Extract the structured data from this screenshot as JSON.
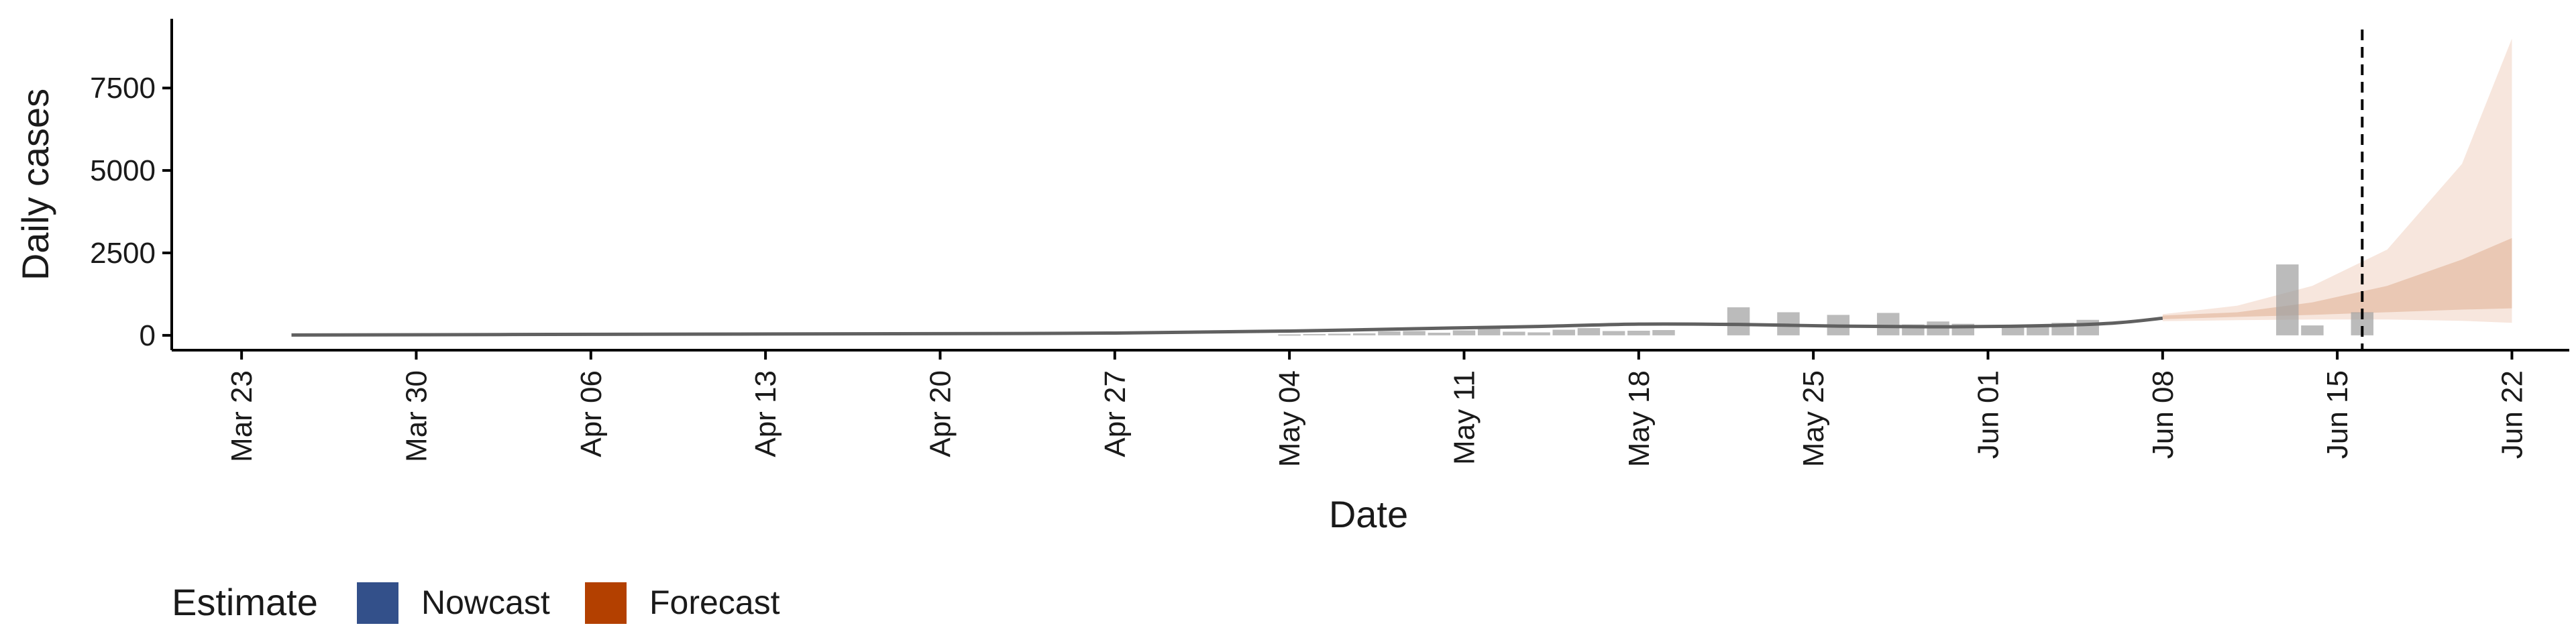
{
  "chart_data": {
    "type": "bar",
    "xlabel": "Date",
    "ylabel": "Daily cases",
    "x_tick_labels": [
      "Mar 23",
      "Mar 30",
      "Apr 06",
      "Apr 13",
      "Apr 20",
      "Apr 27",
      "May 04",
      "May 11",
      "May 18",
      "May 25",
      "Jun 01",
      "Jun 08",
      "Jun 15",
      "Jun 22"
    ],
    "x_tick_days": [
      0,
      7,
      14,
      21,
      28,
      35,
      42,
      49,
      56,
      63,
      70,
      77,
      84,
      91
    ],
    "y_ticks": [
      0,
      2500,
      5000,
      7500
    ],
    "xlim_days": [
      -2.8,
      93.3
    ],
    "ylim": [
      -450,
      9600
    ],
    "start_date": "2020-03-23",
    "grid": false,
    "reported_cases": [
      {
        "day": 42,
        "value": 30
      },
      {
        "day": 43,
        "value": 40
      },
      {
        "day": 44,
        "value": 50
      },
      {
        "day": 45,
        "value": 60
      },
      {
        "day": 46,
        "value": 120
      },
      {
        "day": 47,
        "value": 130
      },
      {
        "day": 48,
        "value": 80
      },
      {
        "day": 49,
        "value": 150
      },
      {
        "day": 50,
        "value": 200
      },
      {
        "day": 51,
        "value": 110
      },
      {
        "day": 52,
        "value": 90
      },
      {
        "day": 53,
        "value": 170
      },
      {
        "day": 54,
        "value": 220
      },
      {
        "day": 55,
        "value": 130
      },
      {
        "day": 56,
        "value": 140
      },
      {
        "day": 57,
        "value": 160
      },
      {
        "day": 60,
        "value": 850
      },
      {
        "day": 62,
        "value": 700
      },
      {
        "day": 64,
        "value": 620
      },
      {
        "day": 66,
        "value": 680
      },
      {
        "day": 67,
        "value": 330
      },
      {
        "day": 68,
        "value": 420
      },
      {
        "day": 69,
        "value": 350
      },
      {
        "day": 71,
        "value": 310
      },
      {
        "day": 72,
        "value": 330
      },
      {
        "day": 73,
        "value": 380
      },
      {
        "day": 74,
        "value": 470
      },
      {
        "day": 82,
        "value": 2150
      },
      {
        "day": 83,
        "value": 300
      },
      {
        "day": 85,
        "value": 700
      }
    ],
    "nowcast": {
      "name": "Nowcast",
      "color": "#33508a",
      "line_color": "#606060",
      "points": [
        [
          2,
          10
        ],
        [
          14,
          30
        ],
        [
          28,
          50
        ],
        [
          35,
          70
        ],
        [
          42,
          130
        ],
        [
          49,
          230
        ],
        [
          52,
          270
        ],
        [
          56,
          340
        ],
        [
          60,
          330
        ],
        [
          64,
          280
        ],
        [
          68,
          260
        ],
        [
          72,
          290
        ],
        [
          75,
          370
        ],
        [
          77,
          520
        ]
      ]
    },
    "forecast": {
      "name": "Forecast",
      "color": "#b34000",
      "band_outer_color": "#f7e6dd",
      "band_inner_color": "#eac8b4",
      "outer_upper": [
        [
          77,
          640
        ],
        [
          80,
          900
        ],
        [
          83,
          1500
        ],
        [
          86,
          2600
        ],
        [
          89,
          5200
        ],
        [
          91,
          9000
        ]
      ],
      "outer_lower": [
        [
          77,
          430
        ],
        [
          80,
          460
        ],
        [
          83,
          480
        ],
        [
          86,
          480
        ],
        [
          89,
          440
        ],
        [
          91,
          380
        ]
      ],
      "inner_upper": [
        [
          77,
          600
        ],
        [
          80,
          700
        ],
        [
          83,
          1000
        ],
        [
          86,
          1500
        ],
        [
          89,
          2300
        ],
        [
          91,
          2950
        ]
      ],
      "inner_lower": [
        [
          77,
          490
        ],
        [
          80,
          560
        ],
        [
          83,
          620
        ],
        [
          86,
          700
        ],
        [
          89,
          780
        ],
        [
          91,
          820
        ]
      ]
    },
    "vline_day": 85,
    "legend": {
      "title": "Estimate",
      "placement": "bottom-left",
      "items": [
        {
          "label": "Nowcast",
          "color": "#33508a"
        },
        {
          "label": "Forecast",
          "color": "#b34000"
        }
      ]
    }
  }
}
